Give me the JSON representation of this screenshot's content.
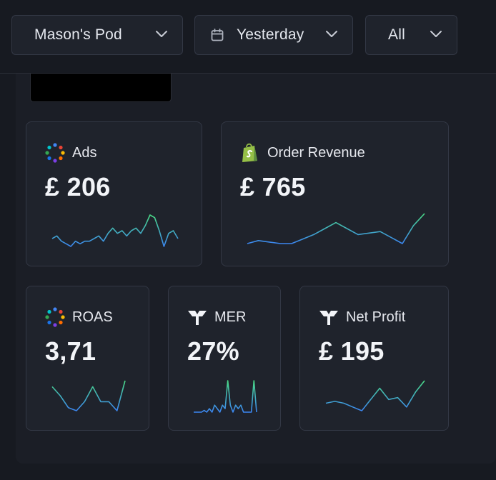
{
  "filters": {
    "store": "Mason's Pod",
    "date": "Yesterday",
    "channel": "All"
  },
  "cards": {
    "ads": {
      "title": "Ads",
      "value": "£ 206",
      "icon": "ads-dots-icon",
      "spark": [
        4,
        5,
        3,
        2,
        1,
        3,
        2,
        3,
        3,
        4,
        5,
        3,
        6,
        8,
        6,
        7,
        5,
        7,
        8,
        6,
        9,
        13,
        12,
        7,
        1,
        6,
        7,
        4
      ]
    },
    "revenue": {
      "title": "Order Revenue",
      "value": "£ 765",
      "icon": "shopify-icon",
      "spark": [
        2,
        3,
        2.5,
        2,
        2,
        3.5,
        5,
        7,
        9,
        7,
        5,
        5.5,
        6,
        4,
        2,
        8,
        12
      ]
    },
    "roas": {
      "title": "ROAS",
      "value": "3,71",
      "icon": "ads-dots-icon",
      "spark": [
        10,
        7,
        3,
        2,
        5,
        10,
        5,
        5,
        2,
        12
      ]
    },
    "mer": {
      "title": "MER",
      "value": "27%",
      "icon": "triple-whale-icon",
      "spark": [
        1,
        1,
        1,
        1,
        1.5,
        1,
        2,
        1,
        3,
        2,
        1,
        3,
        2,
        10,
        3,
        1,
        3,
        2,
        3,
        1,
        1,
        1,
        1,
        10,
        1
      ]
    },
    "net_profit": {
      "title": "Net Profit",
      "value": "£ 195",
      "icon": "triple-whale-icon",
      "spark": [
        5,
        5.5,
        5,
        4,
        3,
        6,
        9,
        6,
        6.5,
        4,
        8,
        11
      ]
    }
  },
  "colors": {
    "spark_low": "#3b82f6",
    "spark_high": "#4ade80"
  }
}
